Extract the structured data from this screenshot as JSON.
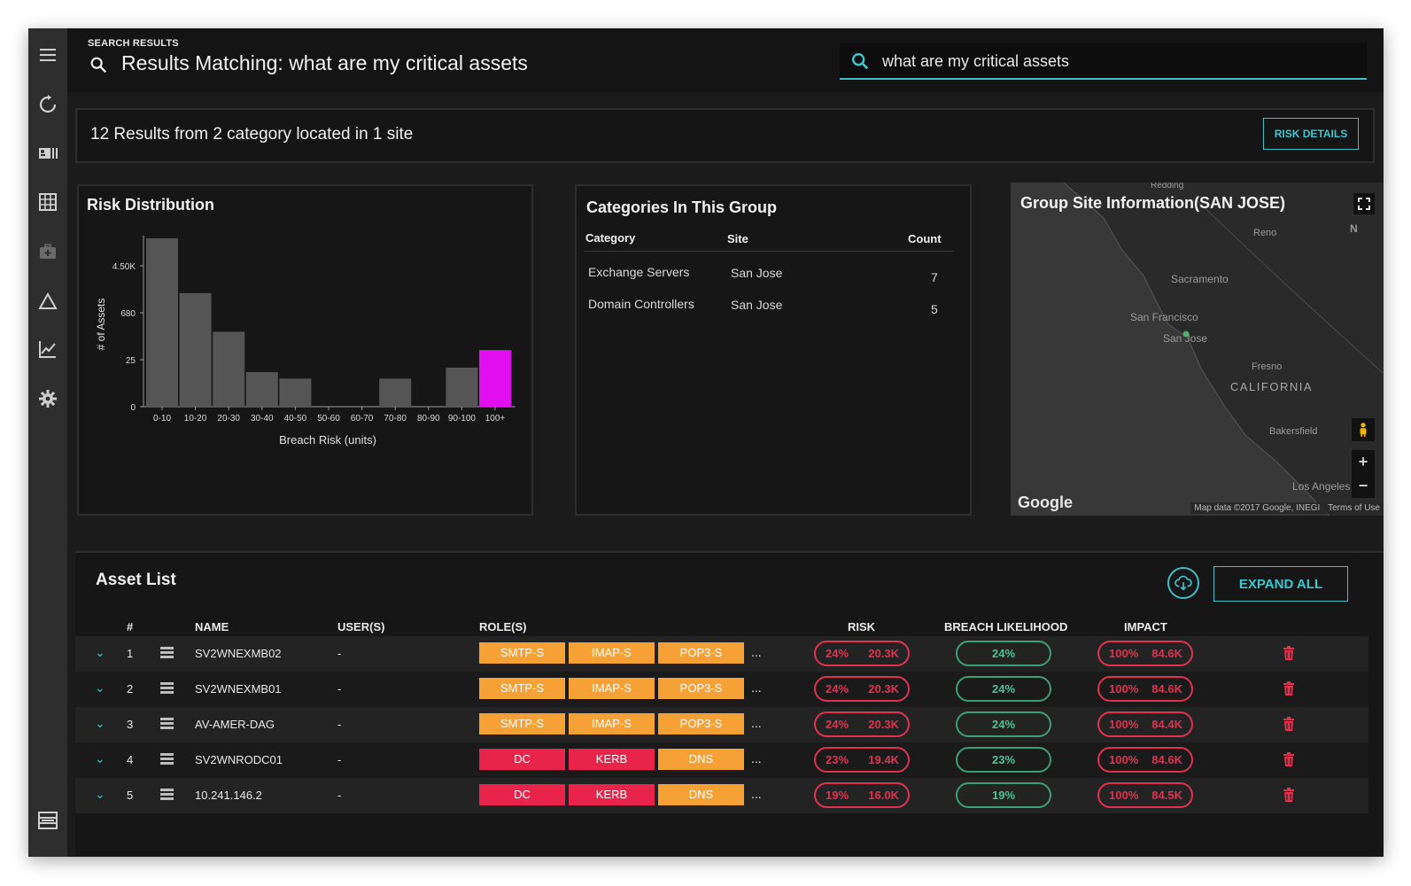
{
  "header": {
    "label": "SEARCH RESULTS",
    "title": "Results Matching: what are my critical assets",
    "search_value": "what are my critical assets"
  },
  "summary": {
    "text": "12 Results from 2 category located in 1 site",
    "risk_details_label": "RISK DETAILS"
  },
  "risk_distribution": {
    "title": "Risk Distribution"
  },
  "chart_data": {
    "type": "bar",
    "title": "Risk Distribution",
    "xlabel": "Breach Risk (units)",
    "ylabel": "# of Assets",
    "categories": [
      "0-10",
      "10-20",
      "20-30",
      "30-40",
      "40-50",
      "50-60",
      "60-70",
      "70-80",
      "80-90",
      "90-100",
      "100+"
    ],
    "y_ticks": [
      "0",
      "25",
      "680",
      "4.50K"
    ],
    "y_scale": "nonlinear",
    "values": [
      14000,
      1500,
      180,
      10,
      6,
      0,
      0,
      6,
      0,
      14,
      50
    ],
    "highlight_index": 10,
    "colors": {
      "bar": "#555555",
      "highlight": "#e10ff0"
    }
  },
  "categories_panel": {
    "title": "Categories In This Group",
    "headers": {
      "category": "Category",
      "site": "Site",
      "count": "Count"
    },
    "rows": [
      {
        "category": "Exchange Servers",
        "site": "San Jose",
        "count": "7"
      },
      {
        "category": "Domain Controllers",
        "site": "San Jose",
        "count": "5"
      }
    ]
  },
  "map": {
    "title": "Group Site Information(SAN JOSE)",
    "labels": {
      "reno": "Reno",
      "sacramento": "Sacramento",
      "san_francisco": "San Francisco",
      "san_jose": "San Jose",
      "fresno": "Fresno",
      "california": "CALIFORNIA",
      "bakersfield": "Bakersfield",
      "los_angeles": "Los Angeles",
      "reading": "Redding",
      "nv": "N"
    },
    "google": "Google",
    "attribution": "Map data ©2017 Google, INEGI",
    "terms": "Terms of Use",
    "zoom_in": "+",
    "zoom_out": "−"
  },
  "asset_list": {
    "title": "Asset List",
    "expand_all_label": "EXPAND ALL",
    "columns": {
      "num": "#",
      "name": "NAME",
      "users": "USER(S)",
      "roles": "ROLE(S)",
      "risk": "RISK",
      "breach": "BREACH LIKELIHOOD",
      "impact": "IMPACT"
    },
    "rows": [
      {
        "num": "1",
        "name": "SV2WNEXMB02",
        "users": "-",
        "roles": [
          "SMTP-S",
          "IMAP-S",
          "POP3-S"
        ],
        "role_colors": [
          "orange",
          "orange",
          "orange"
        ],
        "more": "...",
        "risk_pct": "24%",
        "risk_val": "20.3K",
        "breach": "24%",
        "impact_pct": "100%",
        "impact_val": "84.6K"
      },
      {
        "num": "2",
        "name": "SV2WNEXMB01",
        "users": "-",
        "roles": [
          "SMTP-S",
          "IMAP-S",
          "POP3-S"
        ],
        "role_colors": [
          "orange",
          "orange",
          "orange"
        ],
        "more": "...",
        "risk_pct": "24%",
        "risk_val": "20.3K",
        "breach": "24%",
        "impact_pct": "100%",
        "impact_val": "84.6K"
      },
      {
        "num": "3",
        "name": "AV-AMER-DAG",
        "users": "-",
        "roles": [
          "SMTP-S",
          "IMAP-S",
          "POP3-S"
        ],
        "role_colors": [
          "orange",
          "orange",
          "orange"
        ],
        "more": "...",
        "risk_pct": "24%",
        "risk_val": "20.3K",
        "breach": "24%",
        "impact_pct": "100%",
        "impact_val": "84.4K"
      },
      {
        "num": "4",
        "name": "SV2WNRODC01",
        "users": "-",
        "roles": [
          "DC",
          "KERB",
          "DNS"
        ],
        "role_colors": [
          "red",
          "red",
          "orange"
        ],
        "more": "...",
        "risk_pct": "23%",
        "risk_val": "19.4K",
        "breach": "23%",
        "impact_pct": "100%",
        "impact_val": "84.6K"
      },
      {
        "num": "5",
        "name": "10.241.146.2",
        "users": "-",
        "roles": [
          "DC",
          "KERB",
          "DNS"
        ],
        "role_colors": [
          "red",
          "red",
          "orange"
        ],
        "more": "...",
        "risk_pct": "19%",
        "risk_val": "16.0K",
        "breach": "19%",
        "impact_pct": "100%",
        "impact_val": "84.5K"
      }
    ]
  },
  "sidebar": {
    "icons": [
      "menu-icon",
      "refresh-icon",
      "id-card-icon",
      "grid-icon",
      "medkit-icon",
      "warning-triangle-icon",
      "trend-chart-icon",
      "gear-icon",
      "server-rack-icon"
    ]
  },
  "colors": {
    "accent": "#3fc6cf",
    "risk_red": "#e0324f",
    "breach_green": "#4cc29a",
    "role_orange": "#f5a135",
    "role_red": "#e8244a"
  }
}
